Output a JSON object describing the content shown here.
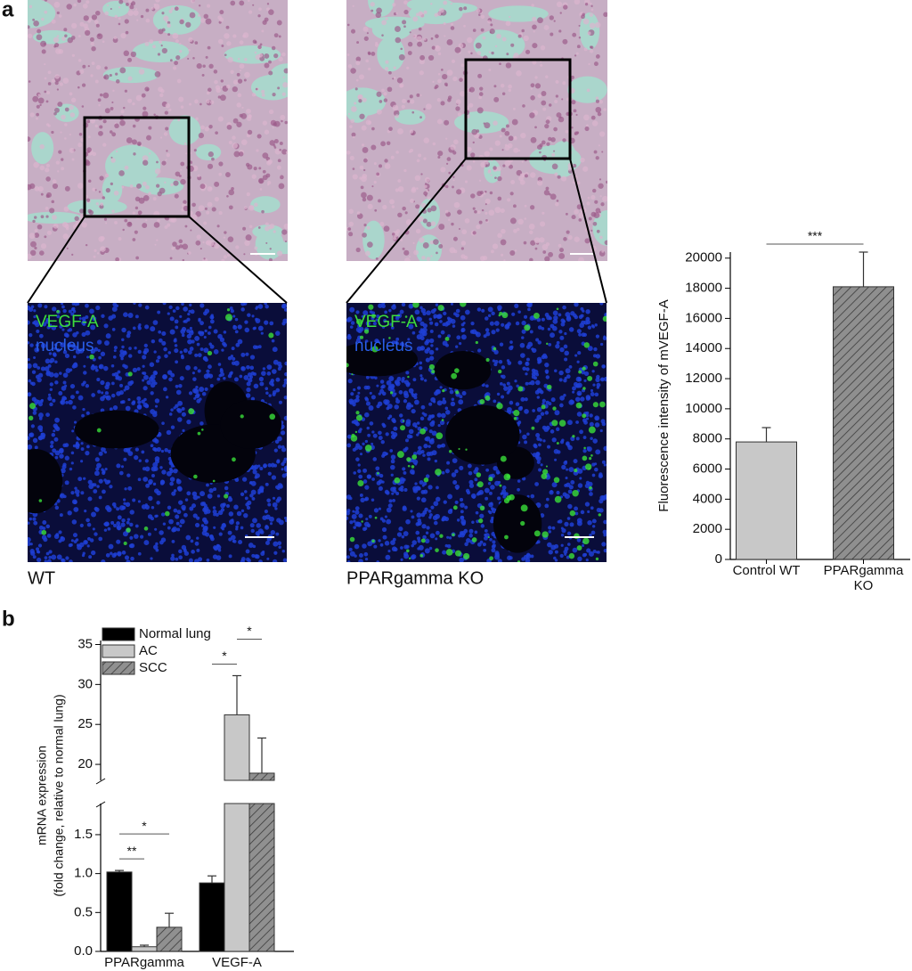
{
  "panel_labels": [
    "a",
    "b"
  ],
  "micrographs": [
    {
      "caption": "WT",
      "stain_labels": [
        "VEGF-A",
        "nucleus"
      ]
    },
    {
      "caption": "PPARgamma KO",
      "stain_labels": [
        "VEGF-A",
        "nucleus"
      ]
    }
  ],
  "chart_data": [
    {
      "type": "bar",
      "ylabel": "Fluorescence intensity of mVEGF-A",
      "categories": [
        "Control WT",
        "PPARgamma KO"
      ],
      "values": [
        7800,
        18100
      ],
      "errors": [
        950,
        2300
      ],
      "colors": [
        "#c8c8c8",
        "#8f8f8f"
      ],
      "hatched": [
        false,
        true
      ],
      "ylim": [
        0,
        20400
      ],
      "yticks": [
        0,
        2000,
        4000,
        6000,
        8000,
        10000,
        12000,
        14000,
        16000,
        18000,
        20000
      ],
      "significance": [
        {
          "label": "***",
          "between": [
            0,
            1
          ]
        }
      ]
    },
    {
      "type": "grouped_bar",
      "ylabel": [
        "mRNA expression",
        "(fold change, relative to normal lung)"
      ],
      "categories": [
        "PPARgamma",
        "VEGF-A"
      ],
      "series": [
        {
          "name": "Normal lung",
          "color": "#000000",
          "hatched": false,
          "values": [
            1.02,
            0.88
          ],
          "errors": [
            0.02,
            0.09
          ]
        },
        {
          "name": "AC",
          "color": "#c8c8c8",
          "hatched": false,
          "values": [
            0.06,
            26.2
          ],
          "errors": [
            0.02,
            4.9
          ]
        },
        {
          "name": "SCC",
          "color": "#909090",
          "hatched": true,
          "values": [
            0.31,
            18.9
          ],
          "errors": [
            0.18,
            4.4
          ]
        }
      ],
      "ylim": [
        0,
        35.5
      ],
      "y_break": [
        1.9,
        18
      ],
      "yticks": [
        {
          "value": 0,
          "label": "0.0"
        },
        {
          "value": 0.5,
          "label": "0.5"
        },
        {
          "value": 1,
          "label": "1.0"
        },
        {
          "value": 1.5,
          "label": "1.5"
        },
        20,
        25,
        30,
        35
      ],
      "legend": "upper left",
      "significance": [
        {
          "label": "**",
          "category": 0,
          "between": [
            0,
            1
          ]
        },
        {
          "label": "*",
          "category": 0,
          "between": [
            0,
            2
          ]
        },
        {
          "label": "*",
          "category": 1,
          "between": [
            0,
            1
          ]
        },
        {
          "label": "*",
          "category": 1,
          "between": [
            1,
            2
          ]
        }
      ]
    }
  ]
}
